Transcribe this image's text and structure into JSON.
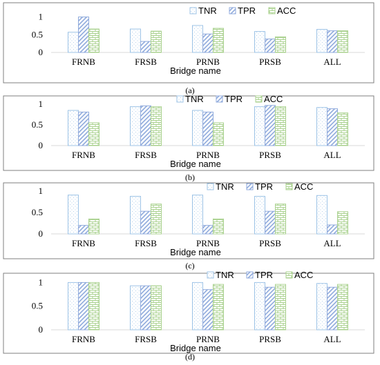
{
  "chart_data": [
    {
      "type": "bar",
      "panel": "(a)",
      "categories": [
        "FRNB",
        "FRSB",
        "PRNB",
        "PRSB",
        "ALL"
      ],
      "series": [
        {
          "name": "TNR",
          "values": [
            0.57,
            0.66,
            0.76,
            0.59,
            0.65
          ]
        },
        {
          "name": "TPR",
          "values": [
            1.0,
            0.31,
            0.52,
            0.38,
            0.61
          ]
        },
        {
          "name": "ACC",
          "values": [
            0.66,
            0.6,
            0.68,
            0.44,
            0.61
          ]
        }
      ],
      "yticks": [
        "0",
        "0.5",
        "1"
      ],
      "ylim": [
        0,
        1.05
      ],
      "xlabel": "Bridge name",
      "ylabel": "",
      "legend": "top-right"
    },
    {
      "type": "bar",
      "panel": "(b)",
      "categories": [
        "FRNB",
        "FRSB",
        "PRNB",
        "PRSB",
        "ALL"
      ],
      "series": [
        {
          "name": "TNR",
          "values": [
            0.85,
            0.94,
            0.85,
            0.94,
            0.92
          ]
        },
        {
          "name": "TPR",
          "values": [
            0.81,
            0.96,
            0.81,
            0.97,
            0.89
          ]
        },
        {
          "name": "ACC",
          "values": [
            0.55,
            0.94,
            0.55,
            0.94,
            0.79
          ]
        }
      ],
      "yticks": [
        "0",
        "0.5",
        "1"
      ],
      "ylim": [
        0,
        1.05
      ],
      "xlabel": "Bridge name",
      "ylabel": "",
      "legend": "top-right"
    },
    {
      "type": "bar",
      "panel": "(c)",
      "categories": [
        "FRNB",
        "FRSB",
        "PRNB",
        "PRSB",
        "ALL"
      ],
      "series": [
        {
          "name": "TNR",
          "values": [
            0.91,
            0.88,
            0.91,
            0.88,
            0.9
          ]
        },
        {
          "name": "TPR",
          "values": [
            0.2,
            0.53,
            0.2,
            0.53,
            0.21
          ]
        },
        {
          "name": "ACC",
          "values": [
            0.35,
            0.7,
            0.35,
            0.7,
            0.52
          ]
        }
      ],
      "yticks": [
        "0",
        "0.5",
        "1"
      ],
      "ylim": [
        0,
        1.05
      ],
      "xlabel": "Bridge name",
      "ylabel": "",
      "legend": "top-right"
    },
    {
      "type": "bar",
      "panel": "(d)",
      "categories": [
        "FRNB",
        "FRSB",
        "PRNB",
        "PRSB",
        "ALL"
      ],
      "series": [
        {
          "name": "TNR",
          "values": [
            1.0,
            0.93,
            1.0,
            1.0,
            0.98
          ]
        },
        {
          "name": "TPR",
          "values": [
            1.0,
            0.93,
            0.85,
            0.9,
            0.9
          ]
        },
        {
          "name": "ACC",
          "values": [
            1.0,
            0.93,
            0.96,
            0.96,
            0.96
          ]
        }
      ],
      "yticks": [
        "0",
        "0.5",
        "1"
      ],
      "ylim": [
        0,
        1.05
      ],
      "xlabel": "Bridge name",
      "ylabel": "",
      "legend": "top-right"
    }
  ],
  "colors": {
    "TNR": "#9dc3e6",
    "TPR": "#8faadc",
    "ACC": "#a9d18e",
    "frame": "#7f7f7f",
    "axis": "#d9d9d9"
  }
}
